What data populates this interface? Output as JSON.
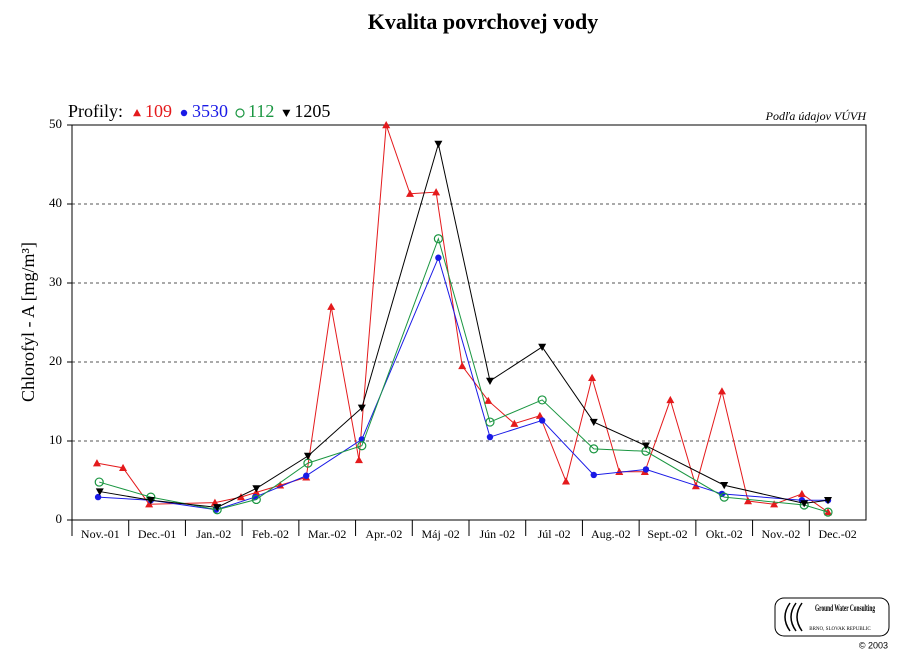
{
  "chart_data": {
    "type": "line",
    "title": "Kvalita povrchovej vody",
    "ylabel": "Chlorofyl - A [mg/m³]",
    "source_note": "Podľa údajov VÚVH",
    "legend_title": "Profily:",
    "categories": [
      "Nov.-01",
      "Dec.-01",
      "Jan.-02",
      "Feb.-02",
      "Mar.-02",
      "Apr.-02",
      "Máj -02",
      "Jún -02",
      "Júl -02",
      "Aug.-02",
      "Sept.-02",
      "Okt.-02",
      "Nov.-02",
      "Dec.-02"
    ],
    "xlim": [
      0,
      14
    ],
    "ylim": [
      0,
      50
    ],
    "yticks": [
      0,
      10,
      20,
      30,
      40,
      50
    ],
    "grid": true,
    "series": [
      {
        "name": "109",
        "color": "#e41a1c",
        "marker": "triangle-up",
        "x": [
          0.44,
          0.9,
          1.36,
          2.52,
          2.98,
          3.25,
          3.67,
          4.13,
          4.57,
          5.06,
          5.54,
          5.96,
          6.42,
          6.88,
          7.34,
          7.8,
          8.25,
          8.71,
          9.17,
          9.65,
          10.1,
          10.55,
          11.0,
          11.46,
          11.92,
          12.38,
          12.87,
          13.33
        ],
        "values": [
          7.2,
          6.6,
          2.0,
          2.2,
          2.9,
          3.5,
          4.4,
          5.4,
          27.0,
          7.6,
          50,
          41.3,
          41.5,
          19.5,
          15.1,
          12.2,
          13.2,
          4.9,
          18.0,
          6.1,
          6.1,
          15.2,
          4.3,
          16.3,
          2.4,
          2.0,
          3.3,
          1.0
        ]
      },
      {
        "name": "3530",
        "color": "#1a1ae6",
        "marker": "circle",
        "x": [
          0.46,
          1.39,
          2.54,
          3.23,
          4.13,
          5.11,
          6.46,
          7.37,
          8.29,
          9.2,
          10.12,
          11.46,
          12.87,
          13.33
        ],
        "values": [
          2.9,
          2.5,
          1.3,
          2.9,
          5.6,
          10.2,
          33.2,
          10.5,
          12.6,
          5.7,
          6.4,
          3.3,
          2.5,
          2.5
        ]
      },
      {
        "name": "112",
        "color": "#1a9641",
        "marker": "circle-open",
        "x": [
          0.48,
          1.39,
          2.56,
          3.25,
          4.16,
          5.11,
          6.46,
          7.37,
          8.29,
          9.2,
          10.12,
          11.5,
          12.91,
          13.33
        ],
        "values": [
          4.8,
          2.9,
          1.3,
          2.6,
          7.2,
          9.4,
          35.6,
          12.4,
          15.2,
          9.0,
          8.7,
          2.9,
          1.9,
          1.0
        ]
      },
      {
        "name": "1205",
        "color": "#000000",
        "marker": "triangle-down",
        "x": [
          0.49,
          1.39,
          2.56,
          3.25,
          4.16,
          5.11,
          6.46,
          7.37,
          8.29,
          9.2,
          10.12,
          11.5,
          12.91,
          13.33
        ],
        "values": [
          3.6,
          2.5,
          1.6,
          4.0,
          8.1,
          14.2,
          47.6,
          17.6,
          21.9,
          12.4,
          9.4,
          4.4,
          2.1,
          2.5
        ]
      }
    ]
  },
  "logo": {
    "name": "Ground Water Consulting",
    "place": "BRNO, SLOVAK REPUBLIC",
    "copyright": "© 2003"
  }
}
